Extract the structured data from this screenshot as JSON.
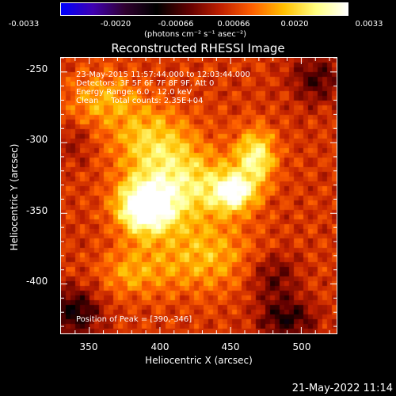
{
  "colorbar": {
    "tick_labels": [
      "-0.0033",
      "-0.0020",
      "-0.00066",
      "0.00066",
      "0.0020",
      "0.0033"
    ],
    "unit": "(photons cm⁻² s⁻¹ asec⁻²)",
    "range": [
      -0.0033,
      0.0033
    ],
    "stops": [
      "#0000ff",
      "#4000b0",
      "#300030",
      "#000000",
      "#600000",
      "#c02000",
      "#ff6000",
      "#ffc000",
      "#ffff80",
      "#ffffff"
    ]
  },
  "title": "Reconstructed RHESSI Image",
  "info": {
    "time": "23-May-2015 11:57:44.000 to 12:03:44.000",
    "detectors": "Detectors: 3F 5F 6F 7F 8F 9F, Att 0",
    "energy": "Energy Range: 6.0 - 12.0 keV",
    "clean": "Clean     Total counts: 2.35E+04",
    "peak": "Position of Peak = [390,-346]"
  },
  "axes": {
    "xlabel": "Heliocentric X (arcsec)",
    "ylabel": "Heliocentric Y (arcsec)",
    "xticks": [
      "350",
      "400",
      "450",
      "500"
    ],
    "yticks": [
      "-250",
      "-300",
      "-350",
      "-400"
    ],
    "xlim": [
      330,
      525
    ],
    "ylim": [
      -435,
      -240
    ]
  },
  "footer": "21-May-2022 11:14",
  "chart_data": {
    "type": "heatmap",
    "title": "Reconstructed RHESSI Image",
    "xlabel": "Heliocentric X (arcsec)",
    "ylabel": "Heliocentric Y (arcsec)",
    "xlim": [
      330,
      525
    ],
    "ylim": [
      -435,
      -240
    ],
    "x_ticks": [
      350,
      400,
      450,
      500
    ],
    "y_ticks": [
      -250,
      -300,
      -350,
      -400
    ],
    "peak": [
      390,
      -346
    ],
    "sources": [
      {
        "x": 390,
        "y": -346,
        "amplitude": 0.0033,
        "sx": 14,
        "sy": 13
      },
      {
        "x": 452,
        "y": -335,
        "amplitude": 0.0024,
        "sx": 10,
        "sy": 9
      },
      {
        "x": 468,
        "y": -310,
        "amplitude": 0.002,
        "sx": 10,
        "sy": 14
      },
      {
        "x": 420,
        "y": -330,
        "amplitude": 0.0016,
        "sx": 24,
        "sy": 18
      },
      {
        "x": 395,
        "y": -300,
        "amplitude": 0.0014,
        "sx": 20,
        "sy": 18
      },
      {
        "x": 360,
        "y": -270,
        "amplitude": 0.0011,
        "sx": 18,
        "sy": 14
      },
      {
        "x": 430,
        "y": -380,
        "amplitude": 0.0012,
        "sx": 25,
        "sy": 18
      },
      {
        "x": 380,
        "y": -392,
        "amplitude": 0.001,
        "sx": 16,
        "sy": 12
      }
    ],
    "negative_regions": [
      {
        "x": 340,
        "y": -420,
        "amplitude": -0.0016,
        "sx": 12,
        "sy": 12
      },
      {
        "x": 490,
        "y": -425,
        "amplitude": -0.0014,
        "sx": 14,
        "sy": 10
      },
      {
        "x": 510,
        "y": -255,
        "amplitude": -0.0012,
        "sx": 12,
        "sy": 12
      },
      {
        "x": 480,
        "y": -395,
        "amplitude": -0.001,
        "sx": 12,
        "sy": 12
      },
      {
        "x": 340,
        "y": -300,
        "amplitude": -0.0006,
        "sx": 8,
        "sy": 10
      }
    ]
  }
}
